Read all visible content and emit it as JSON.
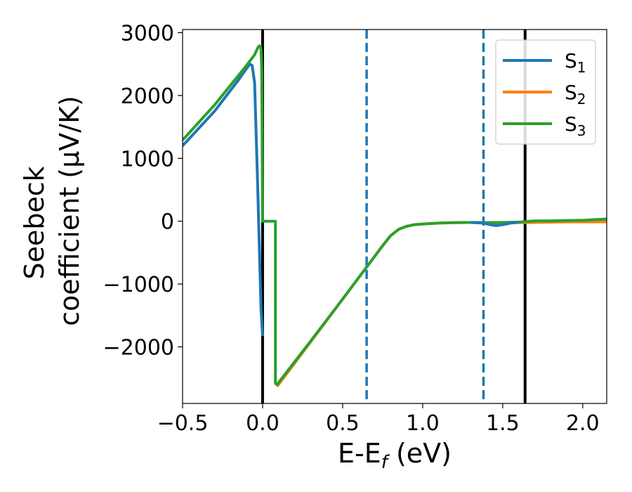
{
  "chart_data": {
    "type": "line",
    "xlabel": {
      "main": "E-E",
      "sub": "f",
      "tail": " (eV)"
    },
    "ylabel": {
      "line1": "Seebeck",
      "line2": "coefficient  (μV/K)"
    },
    "xlim": [
      -0.5,
      2.15
    ],
    "ylim": [
      -2900,
      3050
    ],
    "xticks": [
      -0.5,
      0.0,
      0.5,
      1.0,
      1.5,
      2.0
    ],
    "xtick_labels": [
      "−0.5",
      "0.0",
      "0.5",
      "1.0",
      "1.5",
      "2.0"
    ],
    "yticks": [
      3000,
      2000,
      1000,
      0,
      -1000,
      -2000
    ],
    "ytick_labels": [
      "3000",
      "2000",
      "1000",
      "0",
      "−1000",
      "−2000"
    ],
    "grid": false,
    "legend_position": "top-right",
    "vlines": [
      {
        "x": 0.0,
        "style": "solid",
        "color": "#000000"
      },
      {
        "x": 1.64,
        "style": "solid",
        "color": "#000000"
      },
      {
        "x": 0.65,
        "style": "dashed",
        "color": "#1f77b4"
      },
      {
        "x": 1.38,
        "style": "dashed",
        "color": "#1f77b4"
      }
    ],
    "series": [
      {
        "name": "S",
        "sub": "1",
        "color": "#1f77b4",
        "x": [
          -0.5,
          -0.3,
          -0.15,
          -0.1,
          -0.08,
          -0.065,
          -0.05,
          -0.03,
          -0.01,
          0.0
        ],
        "y": [
          1200,
          1750,
          2250,
          2430,
          2500,
          2480,
          2200,
          500,
          -1400,
          -1830
        ]
      },
      {
        "name": "S",
        "sub": "2",
        "color": "#ff7f0e",
        "x": [
          0.09,
          0.3,
          0.5,
          0.65,
          0.75,
          0.8,
          0.85,
          0.9,
          0.95,
          1.0,
          1.1,
          1.2,
          1.3,
          1.4,
          1.5,
          1.6,
          1.7,
          1.8,
          1.9,
          2.0,
          2.15
        ],
        "y": [
          -2630,
          -1920,
          -1240,
          -730,
          -390,
          -230,
          -130,
          -80,
          -55,
          -45,
          -30,
          -22,
          -20,
          -22,
          -25,
          -22,
          -20,
          -15,
          -12,
          -10,
          -10
        ]
      },
      {
        "name": "S",
        "sub": "3",
        "color": "#2ca02c",
        "x": [
          -0.5,
          -0.3,
          -0.1,
          -0.05,
          -0.03,
          -0.02,
          -0.015,
          -0.01,
          -0.005,
          0.0,
          0.08,
          0.08,
          0.09,
          0.3,
          0.5,
          0.65,
          0.75,
          0.8,
          0.85,
          0.9,
          0.95,
          1.0,
          1.1,
          1.2,
          1.3,
          1.4,
          1.5,
          1.6,
          1.7,
          1.8,
          1.9,
          2.0,
          2.15
        ],
        "y": [
          1290,
          1850,
          2480,
          2650,
          2760,
          2790,
          2780,
          2740,
          2400,
          0,
          0,
          -2580,
          -2600,
          -1910,
          -1240,
          -730,
          -390,
          -230,
          -130,
          -80,
          -55,
          -45,
          -30,
          -22,
          -20,
          -22,
          -20,
          -15,
          5,
          5,
          10,
          15,
          35
        ]
      },
      {
        "name": "",
        "sub": "",
        "color": "#1f77b4",
        "legend": false,
        "x": [
          1.3,
          1.38,
          1.42,
          1.46,
          1.5,
          1.55,
          1.6
        ],
        "y": [
          -20,
          -30,
          -55,
          -70,
          -55,
          -30,
          -15
        ]
      }
    ]
  }
}
